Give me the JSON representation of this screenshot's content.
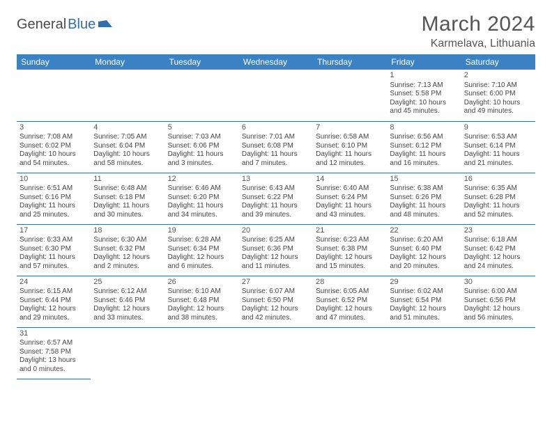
{
  "logo": {
    "part1": "General",
    "part2": "Blue"
  },
  "title": "March 2024",
  "location": "Karmelava, Lithuania",
  "colors": {
    "header_bg": "#3b82c4",
    "header_text": "#ffffff",
    "rule": "#2f6fb0",
    "shaded": "#e8e8e8",
    "logo_accent": "#2f6fb0"
  },
  "day_headers": [
    "Sunday",
    "Monday",
    "Tuesday",
    "Wednesday",
    "Thursday",
    "Friday",
    "Saturday"
  ],
  "weeks": [
    [
      null,
      null,
      null,
      null,
      null,
      {
        "n": "1",
        "sr": "Sunrise: 7:13 AM",
        "ss": "Sunset: 5:58 PM",
        "d1": "Daylight: 10 hours",
        "d2": "and 45 minutes."
      },
      {
        "n": "2",
        "sr": "Sunrise: 7:10 AM",
        "ss": "Sunset: 6:00 PM",
        "d1": "Daylight: 10 hours",
        "d2": "and 49 minutes."
      }
    ],
    [
      {
        "n": "3",
        "sr": "Sunrise: 7:08 AM",
        "ss": "Sunset: 6:02 PM",
        "d1": "Daylight: 10 hours",
        "d2": "and 54 minutes.",
        "shaded": true
      },
      {
        "n": "4",
        "sr": "Sunrise: 7:05 AM",
        "ss": "Sunset: 6:04 PM",
        "d1": "Daylight: 10 hours",
        "d2": "and 58 minutes."
      },
      {
        "n": "5",
        "sr": "Sunrise: 7:03 AM",
        "ss": "Sunset: 6:06 PM",
        "d1": "Daylight: 11 hours",
        "d2": "and 3 minutes."
      },
      {
        "n": "6",
        "sr": "Sunrise: 7:01 AM",
        "ss": "Sunset: 6:08 PM",
        "d1": "Daylight: 11 hours",
        "d2": "and 7 minutes."
      },
      {
        "n": "7",
        "sr": "Sunrise: 6:58 AM",
        "ss": "Sunset: 6:10 PM",
        "d1": "Daylight: 11 hours",
        "d2": "and 12 minutes."
      },
      {
        "n": "8",
        "sr": "Sunrise: 6:56 AM",
        "ss": "Sunset: 6:12 PM",
        "d1": "Daylight: 11 hours",
        "d2": "and 16 minutes."
      },
      {
        "n": "9",
        "sr": "Sunrise: 6:53 AM",
        "ss": "Sunset: 6:14 PM",
        "d1": "Daylight: 11 hours",
        "d2": "and 21 minutes."
      }
    ],
    [
      {
        "n": "10",
        "sr": "Sunrise: 6:51 AM",
        "ss": "Sunset: 6:16 PM",
        "d1": "Daylight: 11 hours",
        "d2": "and 25 minutes.",
        "shaded": true
      },
      {
        "n": "11",
        "sr": "Sunrise: 6:48 AM",
        "ss": "Sunset: 6:18 PM",
        "d1": "Daylight: 11 hours",
        "d2": "and 30 minutes."
      },
      {
        "n": "12",
        "sr": "Sunrise: 6:46 AM",
        "ss": "Sunset: 6:20 PM",
        "d1": "Daylight: 11 hours",
        "d2": "and 34 minutes."
      },
      {
        "n": "13",
        "sr": "Sunrise: 6:43 AM",
        "ss": "Sunset: 6:22 PM",
        "d1": "Daylight: 11 hours",
        "d2": "and 39 minutes."
      },
      {
        "n": "14",
        "sr": "Sunrise: 6:40 AM",
        "ss": "Sunset: 6:24 PM",
        "d1": "Daylight: 11 hours",
        "d2": "and 43 minutes."
      },
      {
        "n": "15",
        "sr": "Sunrise: 6:38 AM",
        "ss": "Sunset: 6:26 PM",
        "d1": "Daylight: 11 hours",
        "d2": "and 48 minutes."
      },
      {
        "n": "16",
        "sr": "Sunrise: 6:35 AM",
        "ss": "Sunset: 6:28 PM",
        "d1": "Daylight: 11 hours",
        "d2": "and 52 minutes."
      }
    ],
    [
      {
        "n": "17",
        "sr": "Sunrise: 6:33 AM",
        "ss": "Sunset: 6:30 PM",
        "d1": "Daylight: 11 hours",
        "d2": "and 57 minutes.",
        "shaded": true
      },
      {
        "n": "18",
        "sr": "Sunrise: 6:30 AM",
        "ss": "Sunset: 6:32 PM",
        "d1": "Daylight: 12 hours",
        "d2": "and 2 minutes."
      },
      {
        "n": "19",
        "sr": "Sunrise: 6:28 AM",
        "ss": "Sunset: 6:34 PM",
        "d1": "Daylight: 12 hours",
        "d2": "and 6 minutes."
      },
      {
        "n": "20",
        "sr": "Sunrise: 6:25 AM",
        "ss": "Sunset: 6:36 PM",
        "d1": "Daylight: 12 hours",
        "d2": "and 11 minutes."
      },
      {
        "n": "21",
        "sr": "Sunrise: 6:23 AM",
        "ss": "Sunset: 6:38 PM",
        "d1": "Daylight: 12 hours",
        "d2": "and 15 minutes."
      },
      {
        "n": "22",
        "sr": "Sunrise: 6:20 AM",
        "ss": "Sunset: 6:40 PM",
        "d1": "Daylight: 12 hours",
        "d2": "and 20 minutes."
      },
      {
        "n": "23",
        "sr": "Sunrise: 6:18 AM",
        "ss": "Sunset: 6:42 PM",
        "d1": "Daylight: 12 hours",
        "d2": "and 24 minutes."
      }
    ],
    [
      {
        "n": "24",
        "sr": "Sunrise: 6:15 AM",
        "ss": "Sunset: 6:44 PM",
        "d1": "Daylight: 12 hours",
        "d2": "and 29 minutes.",
        "shaded": true
      },
      {
        "n": "25",
        "sr": "Sunrise: 6:12 AM",
        "ss": "Sunset: 6:46 PM",
        "d1": "Daylight: 12 hours",
        "d2": "and 33 minutes."
      },
      {
        "n": "26",
        "sr": "Sunrise: 6:10 AM",
        "ss": "Sunset: 6:48 PM",
        "d1": "Daylight: 12 hours",
        "d2": "and 38 minutes."
      },
      {
        "n": "27",
        "sr": "Sunrise: 6:07 AM",
        "ss": "Sunset: 6:50 PM",
        "d1": "Daylight: 12 hours",
        "d2": "and 42 minutes."
      },
      {
        "n": "28",
        "sr": "Sunrise: 6:05 AM",
        "ss": "Sunset: 6:52 PM",
        "d1": "Daylight: 12 hours",
        "d2": "and 47 minutes."
      },
      {
        "n": "29",
        "sr": "Sunrise: 6:02 AM",
        "ss": "Sunset: 6:54 PM",
        "d1": "Daylight: 12 hours",
        "d2": "and 51 minutes."
      },
      {
        "n": "30",
        "sr": "Sunrise: 6:00 AM",
        "ss": "Sunset: 6:56 PM",
        "d1": "Daylight: 12 hours",
        "d2": "and 56 minutes."
      }
    ],
    [
      {
        "n": "31",
        "sr": "Sunrise: 6:57 AM",
        "ss": "Sunset: 7:58 PM",
        "d1": "Daylight: 13 hours",
        "d2": "and 0 minutes.",
        "shaded": true
      },
      null,
      null,
      null,
      null,
      null,
      null
    ]
  ]
}
